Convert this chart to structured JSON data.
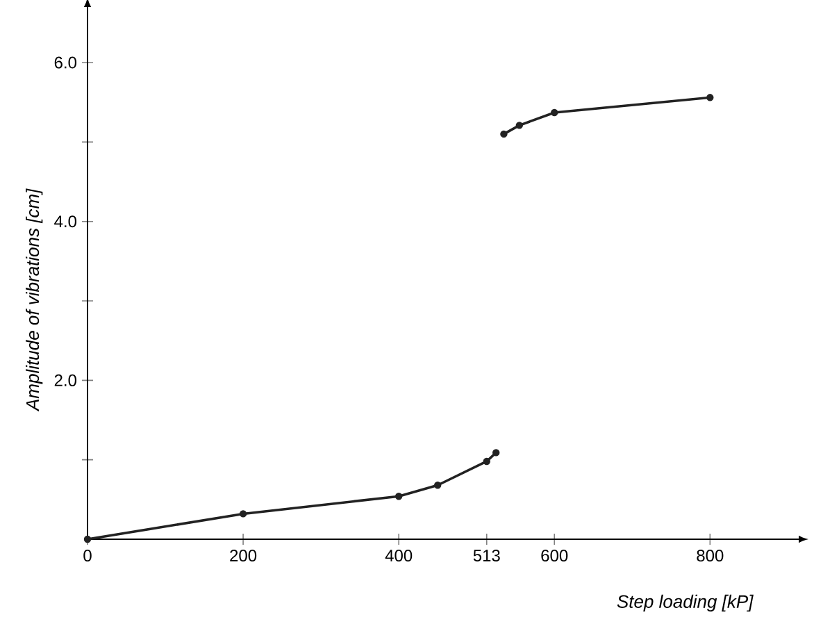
{
  "chart_data": {
    "type": "line",
    "xlabel": "Step loading [kP]",
    "ylabel": "Amplitude of vibrations [cm]",
    "x": [
      0,
      200,
      400,
      450,
      513,
      525,
      null,
      535,
      555,
      600,
      800
    ],
    "values": [
      0,
      0.32,
      0.54,
      0.68,
      0.98,
      1.09,
      null,
      5.1,
      5.21,
      5.37,
      5.56
    ],
    "color": "#222222",
    "marker": "circle",
    "line_style": "solid",
    "grid": false,
    "xlim": [
      0,
      914
    ],
    "ylim": [
      0,
      6.7
    ],
    "xticks": [
      0,
      200,
      400,
      513,
      600,
      800
    ],
    "yticks": [
      {
        "value": 1,
        "label": null
      },
      {
        "value": 2,
        "label": "2.0"
      },
      {
        "value": 3,
        "label": null
      },
      {
        "value": 4,
        "label": "4.0"
      },
      {
        "value": 5,
        "label": null
      },
      {
        "value": 6,
        "label": "6.0"
      }
    ]
  }
}
